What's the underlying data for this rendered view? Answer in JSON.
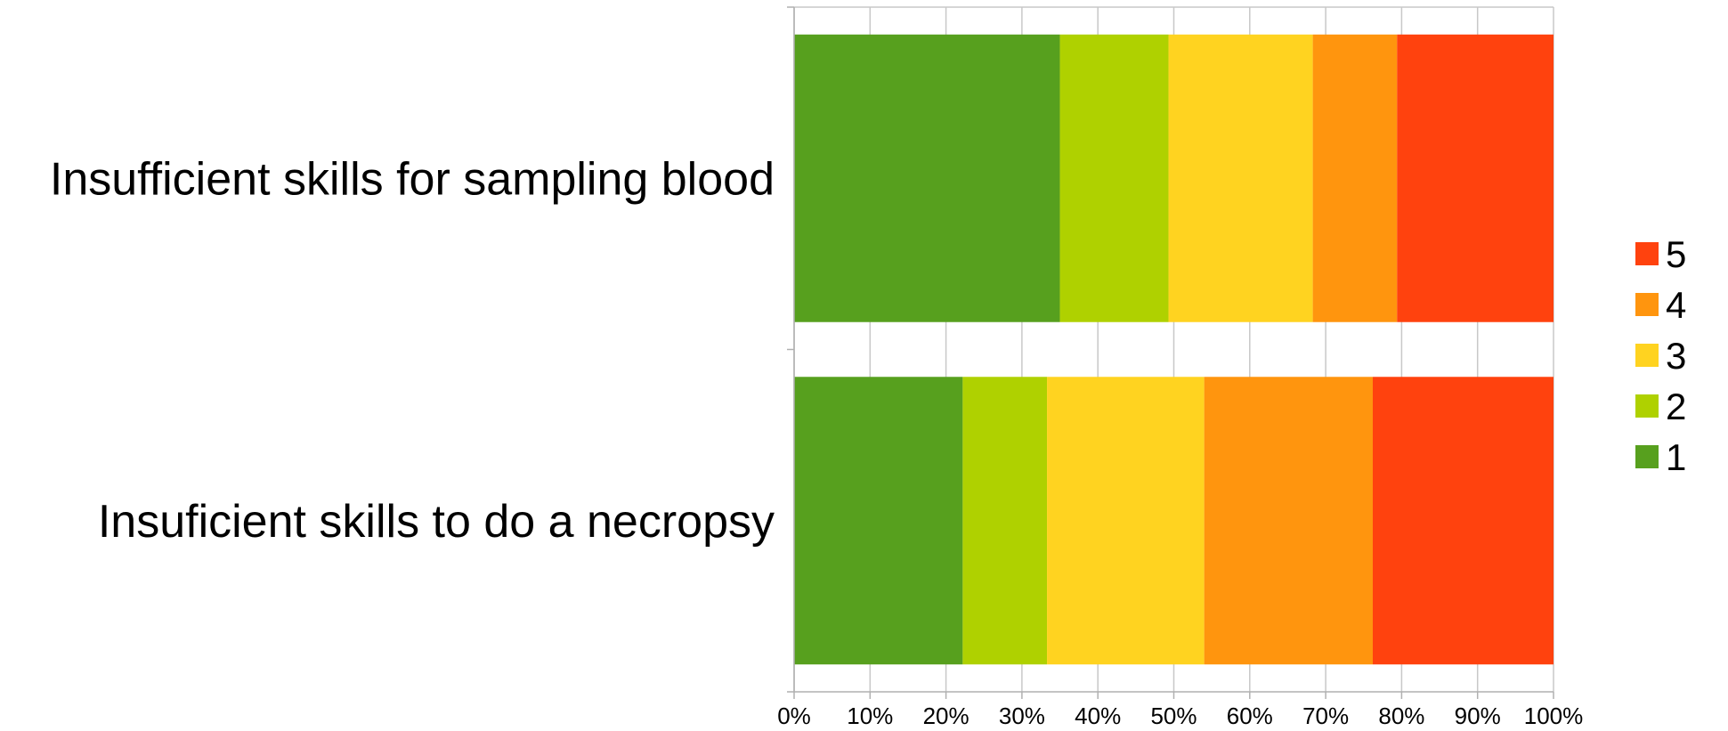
{
  "chart_data": {
    "type": "bar",
    "orientation": "horizontal",
    "stacked": "percent",
    "title": "",
    "xlabel": "",
    "ylabel": "",
    "xlim": [
      0,
      100
    ],
    "categories": [
      "Insufficient skills for sampling blood",
      "Insuficient skills to do a necropsy"
    ],
    "x_ticks": [
      "0%",
      "10%",
      "20%",
      "30%",
      "40%",
      "50%",
      "60%",
      "70%",
      "80%",
      "90%",
      "100%"
    ],
    "grid": "vertical",
    "legend_position": "right",
    "series": [
      {
        "name": "1",
        "color": "#57A01E",
        "values": [
          35.0,
          22.2
        ]
      },
      {
        "name": "2",
        "color": "#AFD100",
        "values": [
          14.3,
          11.1
        ]
      },
      {
        "name": "3",
        "color": "#FFD320",
        "values": [
          19.0,
          20.7
        ]
      },
      {
        "name": "4",
        "color": "#FF950E",
        "values": [
          11.1,
          22.2
        ]
      },
      {
        "name": "5",
        "color": "#FF420E",
        "values": [
          20.6,
          23.8
        ]
      }
    ]
  }
}
